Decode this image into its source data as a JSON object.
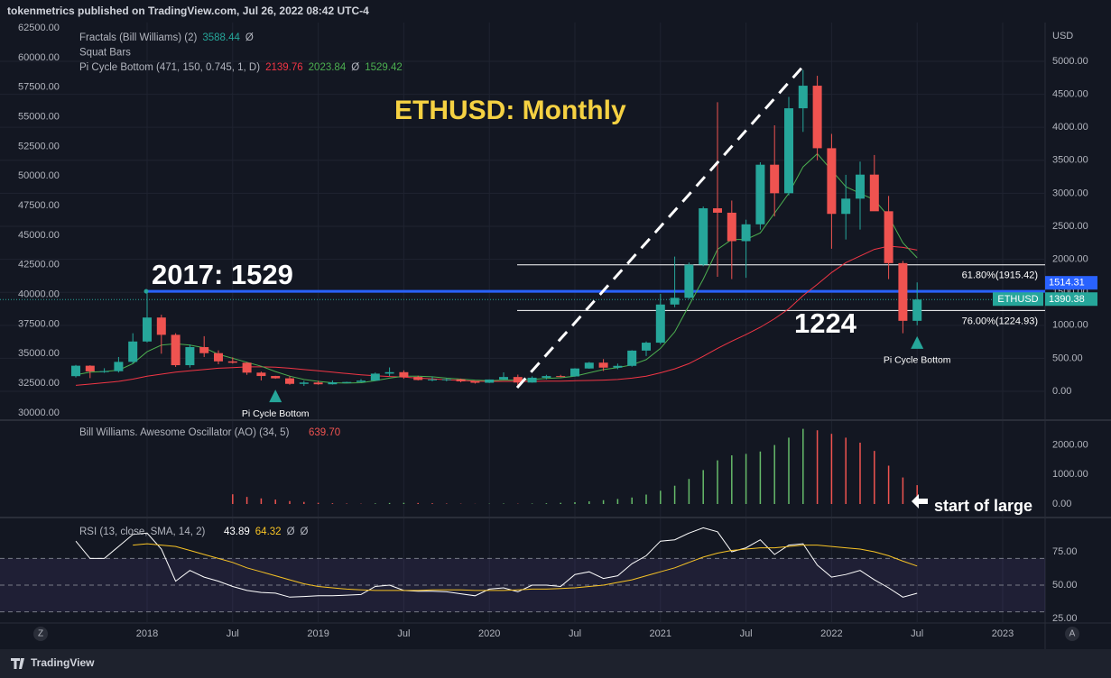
{
  "header": {
    "title": "tokenmetrics published on TradingView.com, Jul 26, 2022 08:42 UTC-4"
  },
  "footer": {
    "brand": "TradingView",
    "buttons": [
      "Z",
      "A"
    ]
  },
  "chart_data": [
    {
      "type": "candlestick",
      "title": "ETHUSD: Monthly",
      "symbol": "ETHUSD",
      "y_label": "USD",
      "legend": [
        [
          {
            "text": "Fractals (Bill Williams) (2)"
          },
          {
            "value": 3588.44,
            "color": "#26a69a"
          },
          {
            "text": "Ø"
          }
        ],
        [
          {
            "text": "Squat Bars"
          }
        ],
        [
          {
            "text": "Pi Cycle Bottom (471, 150, 0.745, 1, D)"
          },
          {
            "value": 2139.76,
            "color": "#f23645"
          },
          {
            "value": 2023.84,
            "color": "#4caf50"
          },
          {
            "text": "Ø"
          },
          {
            "value": 1529.42,
            "color": "#4caf50"
          }
        ]
      ],
      "x": [
        "2017-08",
        "2017-09",
        "2017-10",
        "2017-11",
        "2017-12",
        "2018-01",
        "2018-02",
        "2018-03",
        "2018-04",
        "2018-05",
        "2018-06",
        "2018-07",
        "2018-08",
        "2018-09",
        "2018-10",
        "2018-11",
        "2018-12",
        "2019-01",
        "2019-02",
        "2019-03",
        "2019-04",
        "2019-05",
        "2019-06",
        "2019-07",
        "2019-08",
        "2019-09",
        "2019-10",
        "2019-11",
        "2019-12",
        "2020-01",
        "2020-02",
        "2020-03",
        "2020-04",
        "2020-05",
        "2020-06",
        "2020-07",
        "2020-08",
        "2020-09",
        "2020-10",
        "2020-11",
        "2020-12",
        "2021-01",
        "2021-02",
        "2021-03",
        "2021-04",
        "2021-05",
        "2021-06",
        "2021-07",
        "2021-08",
        "2021-09",
        "2021-10",
        "2021-11",
        "2021-12",
        "2022-01",
        "2022-02",
        "2022-03",
        "2022-04",
        "2022-05",
        "2022-06",
        "2022-07"
      ],
      "open": [
        230,
        388,
        302,
        305,
        446,
        755,
        1118,
        856,
        396,
        670,
        578,
        454,
        433,
        283,
        232,
        197,
        113,
        133,
        107,
        136,
        141,
        162,
        268,
        290,
        218,
        172,
        180,
        182,
        151,
        130,
        179,
        217,
        133,
        206,
        231,
        226,
        346,
        434,
        359,
        386,
        617,
        737,
        1315,
        1416,
        1919,
        2773,
        2706,
        2275,
        2530,
        3433,
        3001,
        4288,
        4630,
        3683,
        2688,
        2919,
        3283,
        2728,
        1942,
        1068
      ],
      "high": [
        400,
        395,
        350,
        520,
        880,
        1530,
        1160,
        880,
        710,
        835,
        620,
        515,
        440,
        300,
        235,
        225,
        160,
        160,
        165,
        145,
        185,
        285,
        362,
        318,
        237,
        225,
        198,
        193,
        153,
        180,
        288,
        253,
        227,
        250,
        250,
        350,
        445,
        488,
        420,
        623,
        755,
        1476,
        2041,
        1950,
        2800,
        4380,
        2890,
        2600,
        3470,
        4030,
        4460,
        4868,
        4780,
        3900,
        3280,
        3480,
        3580,
        2960,
        1975,
        1650
      ],
      "low": [
        210,
        200,
        280,
        285,
        420,
        740,
        570,
        370,
        360,
        520,
        410,
        420,
        250,
        165,
        190,
        100,
        82,
        100,
        102,
        125,
        140,
        160,
        230,
        190,
        165,
        153,
        152,
        137,
        117,
        126,
        178,
        90,
        130,
        180,
        215,
        222,
        342,
        308,
        335,
        373,
        535,
        714,
        1274,
        1400,
        1895,
        1735,
        1700,
        1720,
        2450,
        2650,
        2970,
        3930,
        3500,
        2160,
        2300,
        2450,
        2770,
        1700,
        880,
        1000
      ],
      "close": [
        388,
        302,
        305,
        446,
        755,
        1118,
        856,
        396,
        670,
        578,
        454,
        433,
        283,
        232,
        197,
        113,
        133,
        107,
        136,
        141,
        162,
        268,
        290,
        218,
        172,
        180,
        182,
        151,
        130,
        179,
        217,
        133,
        206,
        231,
        226,
        346,
        434,
        359,
        386,
        617,
        737,
        1315,
        1416,
        1919,
        2773,
        2706,
        2275,
        2530,
        3433,
        3001,
        4288,
        4630,
        3683,
        2688,
        2919,
        3283,
        2728,
        1942,
        1068,
        1390.38
      ],
      "up_color": "#26a69a",
      "down_color": "#ef5350",
      "series": [
        {
          "color": "#f23645",
          "values": [
            90,
            110,
            130,
            150,
            185,
            230,
            260,
            290,
            310,
            330,
            350,
            360,
            370,
            370,
            365,
            350,
            330,
            310,
            290,
            270,
            250,
            235,
            225,
            215,
            200,
            190,
            175,
            165,
            155,
            150,
            150,
            150,
            150,
            155,
            155,
            160,
            165,
            170,
            180,
            200,
            230,
            280,
            340,
            420,
            530,
            650,
            760,
            860,
            970,
            1100,
            1250,
            1450,
            1620,
            1800,
            1950,
            2050,
            2150,
            2200,
            2180,
            2139.76
          ]
        },
        {
          "color": "#4caf50",
          "values": [
            250,
            290,
            300,
            320,
            420,
            600,
            700,
            720,
            700,
            660,
            560,
            500,
            440,
            380,
            300,
            230,
            180,
            150,
            130,
            125,
            130,
            160,
            200,
            230,
            230,
            220,
            200,
            185,
            170,
            160,
            170,
            170,
            180,
            195,
            205,
            230,
            280,
            330,
            360,
            400,
            480,
            650,
            900,
            1300,
            1700,
            2150,
            2300,
            2300,
            2400,
            2700,
            3000,
            3400,
            3600,
            3350,
            3100,
            3000,
            2900,
            2650,
            2250,
            2023.84
          ]
        }
      ],
      "levels": [
        {
          "value": 1514.31,
          "color": "#2962ff"
        },
        {
          "value": 1915.42,
          "label": "61.80%(1915.42)",
          "color": "#ffffff"
        },
        {
          "value": 1224.93,
          "label": "76.00%(1224.93)",
          "color": "#ffffff"
        }
      ],
      "annotations": [
        "2017: 1529",
        "1224"
      ],
      "signals": {
        "label": "Pi Cycle Bottom",
        "x": [
          "2018-10",
          "2022-07"
        ],
        "color": "#26a69a"
      },
      "ylim": [
        -423,
        5587
      ],
      "yticks": [
        {
          "value": 0,
          "label": "0.00"
        },
        {
          "value": 500,
          "label": "500.00"
        },
        {
          "value": 1000,
          "label": "1000.00"
        },
        {
          "value": 1500,
          "label": "1500.00"
        },
        {
          "value": 2000,
          "label": "2000.00"
        },
        {
          "value": 2500,
          "label": "2500.00"
        },
        {
          "value": 3000,
          "label": "3000.00"
        },
        {
          "value": 3500,
          "label": "3500.00"
        },
        {
          "value": 4000,
          "label": "4000.00"
        },
        {
          "value": 4500,
          "label": "4500.00"
        },
        {
          "value": 5000,
          "label": "5000.00"
        }
      ],
      "y2lim": [
        29467,
        62957
      ],
      "y2ticks": [
        {
          "value": 30000,
          "label": "30000.00"
        },
        {
          "value": 32500,
          "label": "32500.00"
        },
        {
          "value": 35000,
          "label": "35000.00"
        },
        {
          "value": 37500,
          "label": "37500.00"
        },
        {
          "value": 40000,
          "label": "40000.00"
        },
        {
          "value": 42500,
          "label": "42500.00"
        },
        {
          "value": 45000,
          "label": "45000.00"
        },
        {
          "value": 47500,
          "label": "47500.00"
        },
        {
          "value": 50000,
          "label": "50000.00"
        },
        {
          "value": 52500,
          "label": "52500.00"
        },
        {
          "value": 55000,
          "label": "55000.00"
        },
        {
          "value": 57500,
          "label": "57500.00"
        },
        {
          "value": 60000,
          "label": "60000.00"
        },
        {
          "value": 62500,
          "label": "62500.00"
        }
      ],
      "xticks": [
        {
          "value": "2018-01",
          "label": "2018"
        },
        {
          "value": "2018-07",
          "label": "Jul"
        },
        {
          "value": "2019-01",
          "label": "2019"
        },
        {
          "value": "2019-07",
          "label": "Jul"
        },
        {
          "value": "2020-01",
          "label": "2020"
        },
        {
          "value": "2020-07",
          "label": "Jul"
        },
        {
          "value": "2021-01",
          "label": "2021"
        },
        {
          "value": "2021-07",
          "label": "Jul"
        },
        {
          "value": "2022-01",
          "label": "2022"
        },
        {
          "value": "2022-07",
          "label": "Jul"
        },
        {
          "value": "2023-01",
          "label": "2023"
        }
      ]
    },
    {
      "type": "bar",
      "title": "Bill Williams. Awesome Oscillator (AO) (34, 5)",
      "legend": [
        {
          "value": 639.7,
          "label": "639.70",
          "color": "#ef5350"
        }
      ],
      "values": [
        null,
        null,
        null,
        null,
        null,
        null,
        null,
        null,
        null,
        null,
        null,
        330,
        240,
        190,
        150,
        100,
        70,
        40,
        25,
        15,
        10,
        20,
        35,
        40,
        35,
        25,
        15,
        10,
        5,
        10,
        15,
        10,
        15,
        25,
        40,
        60,
        90,
        130,
        170,
        220,
        320,
        450,
        620,
        850,
        1150,
        1480,
        1650,
        1700,
        1780,
        2000,
        2250,
        2550,
        2500,
        2380,
        2250,
        2080,
        1800,
        1300,
        900,
        639.7
      ],
      "up_color": "#66bb6a",
      "down_color": "#ef5350",
      "annotation": "start of large",
      "ylim": [
        -428,
        2813
      ],
      "yticks": [
        {
          "value": 0,
          "label": "0.00"
        },
        {
          "value": 1000,
          "label": "1000.00"
        },
        {
          "value": 2000,
          "label": "2000.00"
        }
      ]
    },
    {
      "type": "line",
      "title": "RSI (13, close, SMA, 14, 2)",
      "legend": [
        {
          "value": 43.89,
          "color": "#ffffff"
        },
        {
          "value": 64.32,
          "color": "#f7c325"
        },
        {
          "text": "Ø"
        },
        {
          "text": "Ø"
        }
      ],
      "series": [
        {
          "color": "#ffffff",
          "values": [
            83,
            70,
            70,
            79,
            88,
            89,
            77,
            53,
            61,
            56,
            53,
            49,
            46,
            44.5,
            44,
            41,
            41.5,
            42,
            42,
            42.5,
            43,
            49,
            50,
            46,
            45.5,
            45.5,
            45,
            43.5,
            42,
            47,
            48,
            45,
            50,
            50,
            49,
            58,
            60,
            55,
            57,
            66,
            72,
            83,
            84,
            89,
            93,
            90,
            75,
            78,
            84,
            73,
            80,
            81,
            65,
            56,
            58,
            61,
            54,
            48,
            41,
            43.89
          ]
        },
        {
          "color": "#f7c325",
          "values": [
            null,
            null,
            null,
            null,
            80,
            81,
            80,
            79,
            76,
            73,
            70,
            67,
            63,
            60,
            57,
            54,
            51,
            49,
            48,
            47,
            46.5,
            46,
            46,
            46,
            46,
            46.5,
            46.5,
            46.5,
            46,
            46,
            46,
            46.5,
            47,
            47,
            47.5,
            48,
            49,
            50,
            52,
            54,
            57,
            60,
            63,
            67,
            71,
            74,
            76,
            77,
            78,
            78,
            79,
            80,
            80,
            79,
            78,
            77,
            75,
            72,
            68,
            64.32
          ]
        }
      ],
      "levels": [
        70,
        50,
        30
      ],
      "band_color": "#7e57c2",
      "ylim": [
        22.3,
        100
      ],
      "yticks": [
        {
          "value": 25,
          "label": "25.00"
        },
        {
          "value": 50,
          "label": "50.00"
        },
        {
          "value": 75,
          "label": "75.00"
        }
      ]
    }
  ]
}
